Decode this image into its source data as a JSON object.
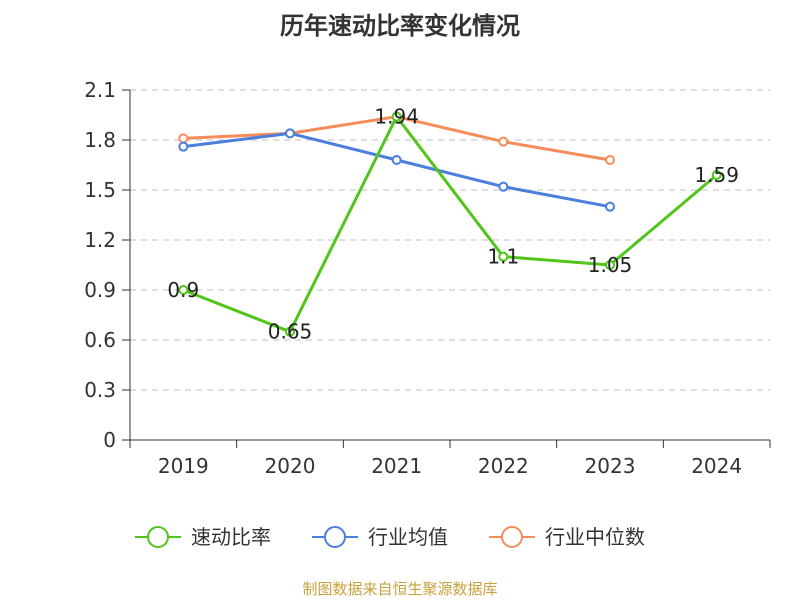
{
  "chart_data": {
    "type": "line",
    "title": "历年速动比率变化情况",
    "categories": [
      "2019",
      "2020",
      "2021",
      "2022",
      "2023",
      "2024"
    ],
    "ylim": [
      0,
      2.1
    ],
    "yticks": [
      "0",
      "0.3",
      "0.6",
      "0.9",
      "1.2",
      "1.5",
      "1.8",
      "2.1"
    ],
    "grid": true,
    "legend_position": "bottom",
    "series": [
      {
        "name": "速动比率",
        "color": "#52c41a",
        "values": [
          0.9,
          0.65,
          1.94,
          1.1,
          1.05,
          1.59
        ],
        "labels": [
          "0.9",
          "0.65",
          "1.94",
          "1.1",
          "1.05",
          "1.59"
        ]
      },
      {
        "name": "行业均值",
        "color": "#4a7fde",
        "values": [
          1.76,
          1.84,
          1.68,
          1.52,
          1.4,
          null
        ]
      },
      {
        "name": "行业中位数",
        "color": "#f78c5a",
        "values": [
          1.81,
          1.84,
          1.94,
          1.79,
          1.68,
          null
        ]
      }
    ],
    "source": "制图数据来自恒生聚源数据库"
  }
}
